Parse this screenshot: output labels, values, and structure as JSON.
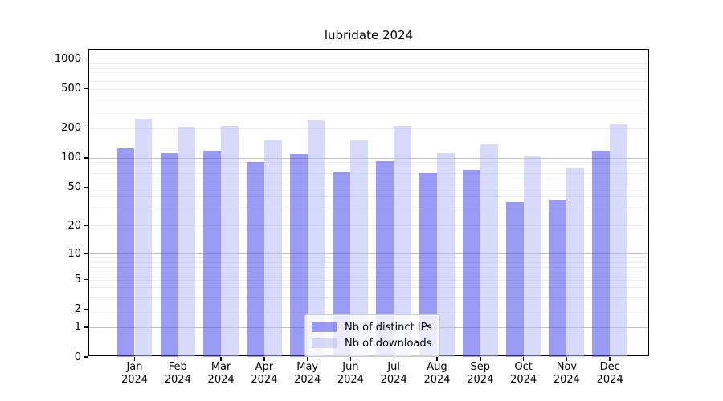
{
  "chart_data": {
    "type": "bar",
    "title": "lubridate 2024",
    "categories": [
      "Jan",
      "Feb",
      "Mar",
      "Apr",
      "May",
      "Jun",
      "Jul",
      "Aug",
      "Sep",
      "Oct",
      "Nov",
      "Dec"
    ],
    "year_label": "2024",
    "series": [
      {
        "name": "Nb of distinct IPs",
        "color": "rgba(70,72,235,0.55)",
        "values": [
          124,
          112,
          118,
          90,
          109,
          71,
          93,
          69,
          75,
          35,
          37,
          117
        ]
      },
      {
        "name": "Nb of downloads",
        "color": "rgba(183,188,248,0.55)",
        "values": [
          250,
          205,
          212,
          153,
          240,
          150,
          211,
          112,
          138,
          104,
          78,
          218
        ]
      }
    ],
    "y_axis": {
      "scale": "log10(1+value)",
      "tick_values": [
        1000,
        500,
        200,
        100,
        50,
        20,
        10,
        5,
        2,
        1,
        0
      ],
      "major_gridlines": [
        1,
        10,
        100,
        1000
      ],
      "minor_gridline_decades": [
        1,
        10,
        100
      ],
      "top_value": 1215
    },
    "grid": {
      "major_color": "#c2c2c2",
      "minor_color": "#ececec"
    },
    "legend_position": "lower center"
  }
}
